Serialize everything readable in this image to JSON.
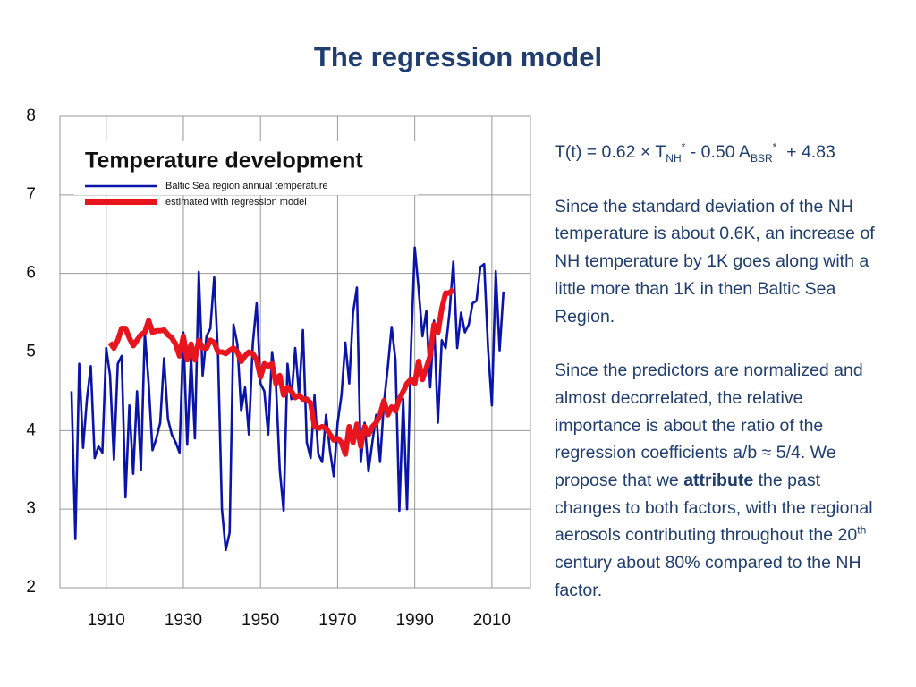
{
  "title": "The regression model",
  "chart_data": {
    "type": "line",
    "title": "Temperature development",
    "legend": "upper left",
    "grid": true,
    "xlim": [
      1898,
      2020
    ],
    "xticks": [
      1910,
      1930,
      1950,
      1970,
      1990,
      2010
    ],
    "ylim": [
      2,
      8
    ],
    "yticks": [
      2,
      3,
      4,
      5,
      6,
      7,
      8
    ],
    "x": [
      1901,
      1902,
      1903,
      1904,
      1905,
      1906,
      1907,
      1908,
      1909,
      1910,
      1911,
      1912,
      1913,
      1914,
      1915,
      1916,
      1917,
      1918,
      1919,
      1920,
      1921,
      1922,
      1923,
      1924,
      1925,
      1926,
      1927,
      1928,
      1929,
      1930,
      1931,
      1932,
      1933,
      1934,
      1935,
      1936,
      1937,
      1938,
      1939,
      1940,
      1941,
      1942,
      1943,
      1944,
      1945,
      1946,
      1947,
      1948,
      1949,
      1950,
      1951,
      1952,
      1953,
      1954,
      1955,
      1956,
      1957,
      1958,
      1959,
      1960,
      1961,
      1962,
      1963,
      1964,
      1965,
      1966,
      1967,
      1968,
      1969,
      1970,
      1971,
      1972,
      1973,
      1974,
      1975,
      1976,
      1977,
      1978,
      1979,
      1980,
      1981,
      1982,
      1983,
      1984,
      1985,
      1986,
      1987,
      1988,
      1989,
      1990,
      1991,
      1992,
      1993,
      1994,
      1995,
      1996,
      1997,
      1998,
      1999,
      2000,
      2001,
      2002,
      2003,
      2004,
      2005,
      2006,
      2007,
      2008,
      2009,
      2010,
      2011,
      2012,
      2013
    ],
    "series": [
      {
        "name": "Baltic Sea region annual temperature",
        "color": "#0a14a8",
        "values": [
          4.5,
          2.62,
          4.85,
          3.78,
          4.4,
          4.82,
          3.65,
          3.8,
          3.72,
          5.05,
          4.7,
          3.63,
          4.85,
          4.95,
          3.15,
          4.32,
          3.45,
          4.5,
          3.5,
          5.25,
          4.6,
          3.75,
          3.9,
          4.1,
          4.92,
          4.15,
          3.95,
          3.85,
          3.72,
          5.25,
          3.82,
          4.95,
          3.9,
          6.02,
          4.7,
          5.2,
          5.3,
          5.95,
          4.95,
          3.0,
          2.48,
          2.7,
          5.35,
          5.1,
          4.25,
          4.55,
          3.95,
          5.1,
          5.62,
          4.6,
          4.5,
          3.95,
          5.0,
          4.6,
          3.5,
          2.98,
          4.85,
          4.4,
          5.05,
          4.45,
          5.28,
          3.85,
          3.65,
          4.45,
          3.7,
          3.6,
          4.2,
          3.75,
          3.42,
          4.1,
          4.45,
          5.12,
          4.6,
          5.5,
          5.82,
          3.6,
          4.1,
          3.48,
          3.85,
          4.2,
          3.6,
          4.35,
          4.8,
          5.32,
          4.9,
          2.98,
          4.4,
          3.0,
          5.0,
          6.33,
          5.8,
          5.2,
          5.52,
          4.55,
          5.4,
          4.1,
          5.15,
          5.05,
          5.5,
          6.15,
          5.05,
          5.5,
          5.25,
          5.35,
          5.62,
          5.65,
          6.08,
          6.12,
          5.05,
          4.32,
          6.03,
          5.02,
          5.77
        ]
      },
      {
        "name": "estimated with regression model",
        "color": "#e8141e",
        "values": [
          null,
          null,
          null,
          null,
          null,
          null,
          null,
          null,
          null,
          null,
          5.12,
          5.05,
          5.15,
          5.3,
          5.3,
          5.18,
          5.08,
          5.15,
          5.22,
          5.25,
          5.4,
          5.25,
          5.27,
          5.27,
          5.28,
          5.22,
          5.18,
          5.1,
          4.95,
          5.2,
          4.9,
          5.1,
          4.9,
          5.15,
          5.05,
          5.05,
          5.15,
          5.12,
          5.0,
          5.0,
          4.98,
          5.02,
          5.05,
          5.0,
          4.88,
          4.95,
          5.0,
          4.98,
          4.9,
          4.68,
          4.85,
          4.82,
          4.85,
          4.6,
          4.7,
          4.45,
          4.55,
          4.5,
          4.42,
          4.45,
          4.4,
          4.4,
          4.35,
          4.05,
          4.03,
          4.05,
          4.03,
          3.95,
          3.88,
          3.9,
          3.85,
          3.7,
          4.05,
          3.85,
          4.08,
          3.8,
          4.05,
          3.95,
          4.05,
          4.1,
          4.2,
          4.38,
          4.2,
          4.3,
          4.25,
          4.4,
          4.5,
          4.6,
          4.65,
          4.6,
          4.88,
          4.65,
          4.8,
          4.95,
          5.35,
          5.25,
          5.55,
          5.75,
          5.75,
          5.8,
          null,
          null,
          null,
          null,
          null,
          null,
          null,
          null,
          null,
          null,
          null,
          null,
          null
        ]
      }
    ]
  },
  "text": {
    "equation": [
      "T(t) = 0.62 × T",
      "NH",
      "*",
      " - 0.50 A",
      "BSR",
      "*",
      "  + 4.83"
    ],
    "paragraph1": "Since the standard deviation of the NH temperature is about 0.6K, an increase of NH temperature by 1K goes along with a little more than 1K in then Baltic Sea Region.",
    "paragraph2": [
      "Since the predictors are normalized and almost decorrelated, the relative importance is about the ratio of the regression coefficients a/b ≈ 5/4. We propose that we ",
      "attribute",
      " the past changes to both factors, with the regional aerosols contributing throughout the 20",
      "th",
      " century about 80% compared to the NH factor."
    ]
  }
}
